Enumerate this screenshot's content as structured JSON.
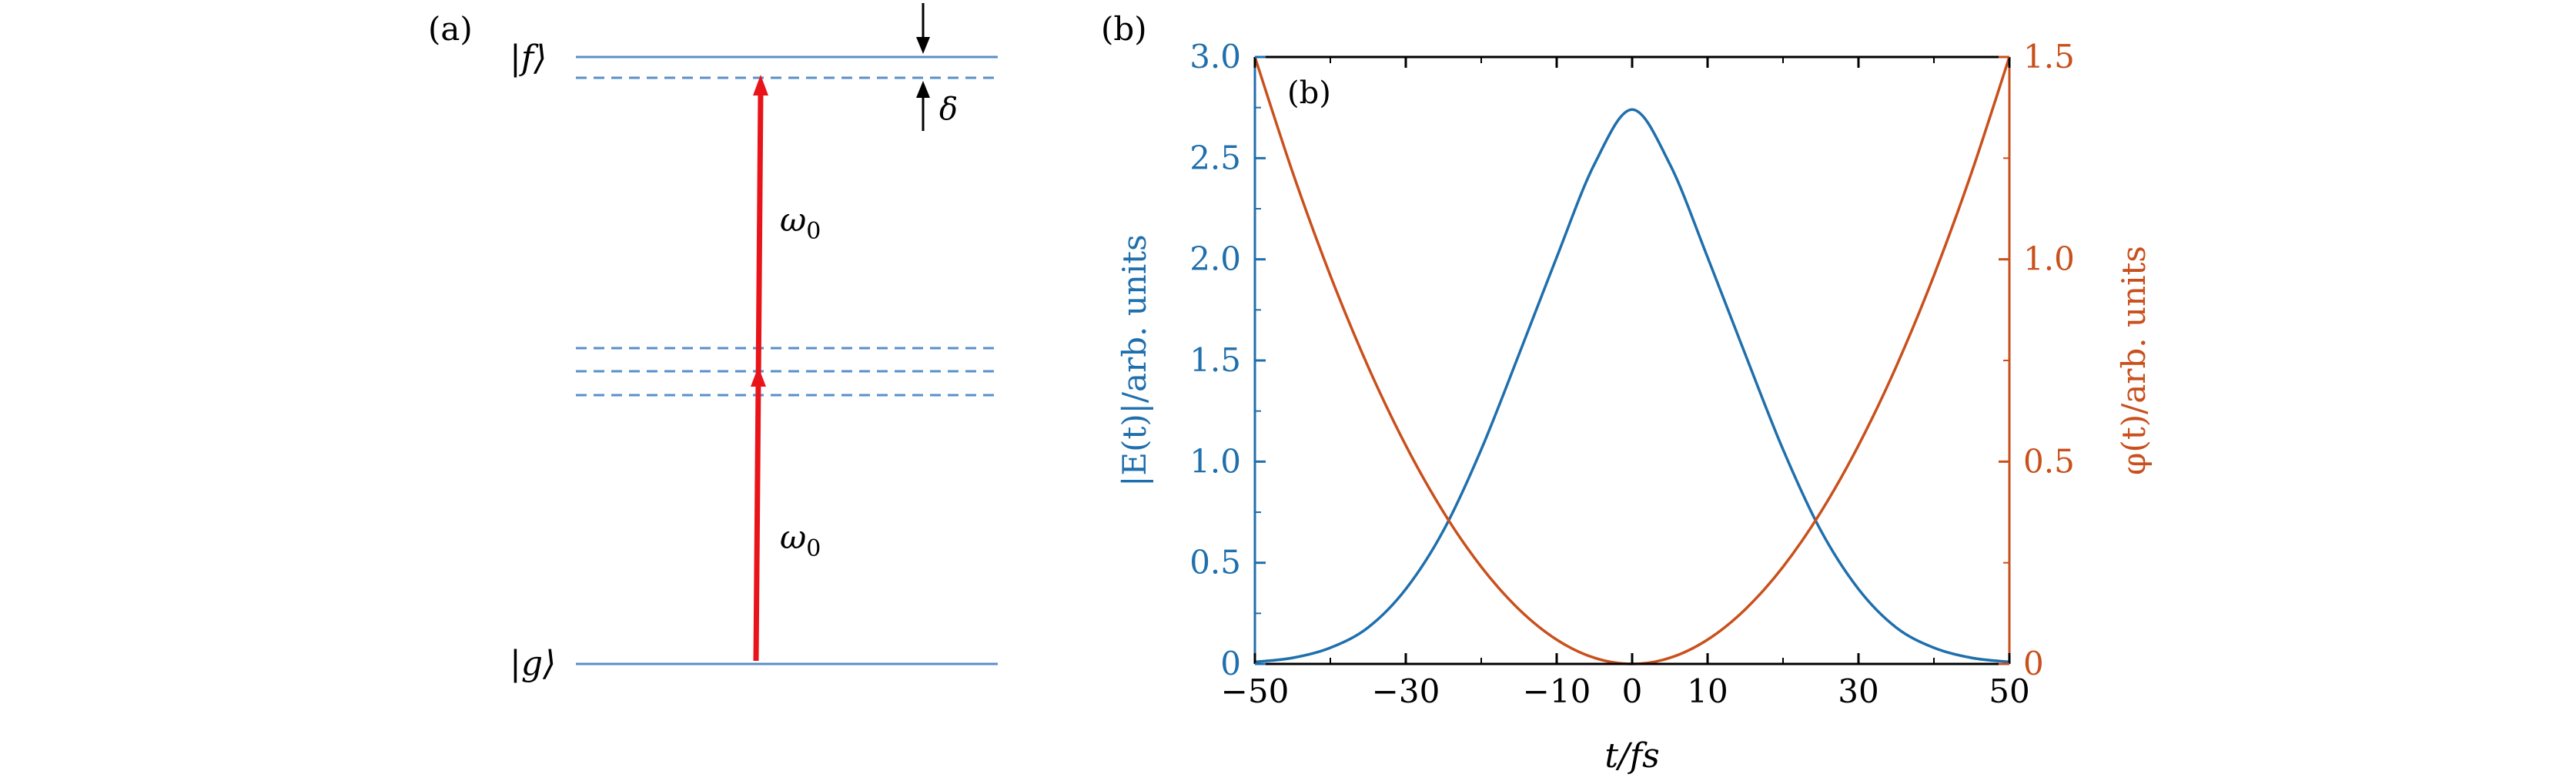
{
  "panel_a": {
    "label": "(a)",
    "state_upper": "|f⟩",
    "state_lower": "|g⟩",
    "photon_energy": "ω",
    "photon_subscript": "0",
    "detuning": "δ",
    "colors": {
      "level": "#5a8fc8",
      "arrow": "#e8141a",
      "text": "#000000"
    }
  },
  "panel_b": {
    "outer_label": "(b)",
    "inner_label": "(b)",
    "colors": {
      "left_axis": "#1f6fad",
      "right_axis": "#c9501c",
      "frame": "#000000"
    },
    "chart_data": {
      "type": "line",
      "xlabel": "t/fs",
      "ylabel_left": "|E(t)|/arb. units",
      "ylabel_right": "φ(t)/arb. units",
      "xlim": [
        -50,
        50
      ],
      "ylim_left": [
        0,
        3.0
      ],
      "ylim_right": [
        0,
        1.5
      ],
      "x_ticks": [
        "−50",
        "−30",
        "−10",
        "0",
        "10",
        "30",
        "50"
      ],
      "x_tick_values": [
        -50,
        -30,
        -10,
        0,
        10,
        30,
        50
      ],
      "y_ticks_left": [
        "0",
        "0.5",
        "1.0",
        "1.5",
        "2.0",
        "2.5",
        "3.0"
      ],
      "y_ticks_right": [
        "0",
        "0.5",
        "1.0",
        "1.5"
      ],
      "series": [
        {
          "axis": "left",
          "color": "#1f6fad",
          "x": [
            -50,
            -45,
            -40,
            -35,
            -30,
            -25,
            -20,
            -15,
            -10,
            -5,
            0,
            5,
            10,
            15,
            20,
            25,
            30,
            35,
            40,
            45,
            50
          ],
          "values": [
            0.01,
            0.03,
            0.08,
            0.18,
            0.37,
            0.66,
            1.06,
            1.53,
            2.01,
            2.47,
            2.74,
            2.47,
            2.01,
            1.53,
            1.06,
            0.66,
            0.37,
            0.18,
            0.08,
            0.03,
            0.01
          ]
        },
        {
          "axis": "right",
          "color": "#c9501c",
          "x": [
            -50,
            -45,
            -40,
            -35,
            -30,
            -25,
            -20,
            -15,
            -10,
            -5,
            0,
            5,
            10,
            15,
            20,
            25,
            30,
            35,
            40,
            45,
            50
          ],
          "values": [
            1.5,
            1.215,
            0.96,
            0.735,
            0.54,
            0.375,
            0.24,
            0.135,
            0.06,
            0.015,
            0.0,
            0.015,
            0.06,
            0.135,
            0.24,
            0.375,
            0.54,
            0.735,
            0.96,
            1.215,
            1.5
          ]
        }
      ]
    }
  }
}
